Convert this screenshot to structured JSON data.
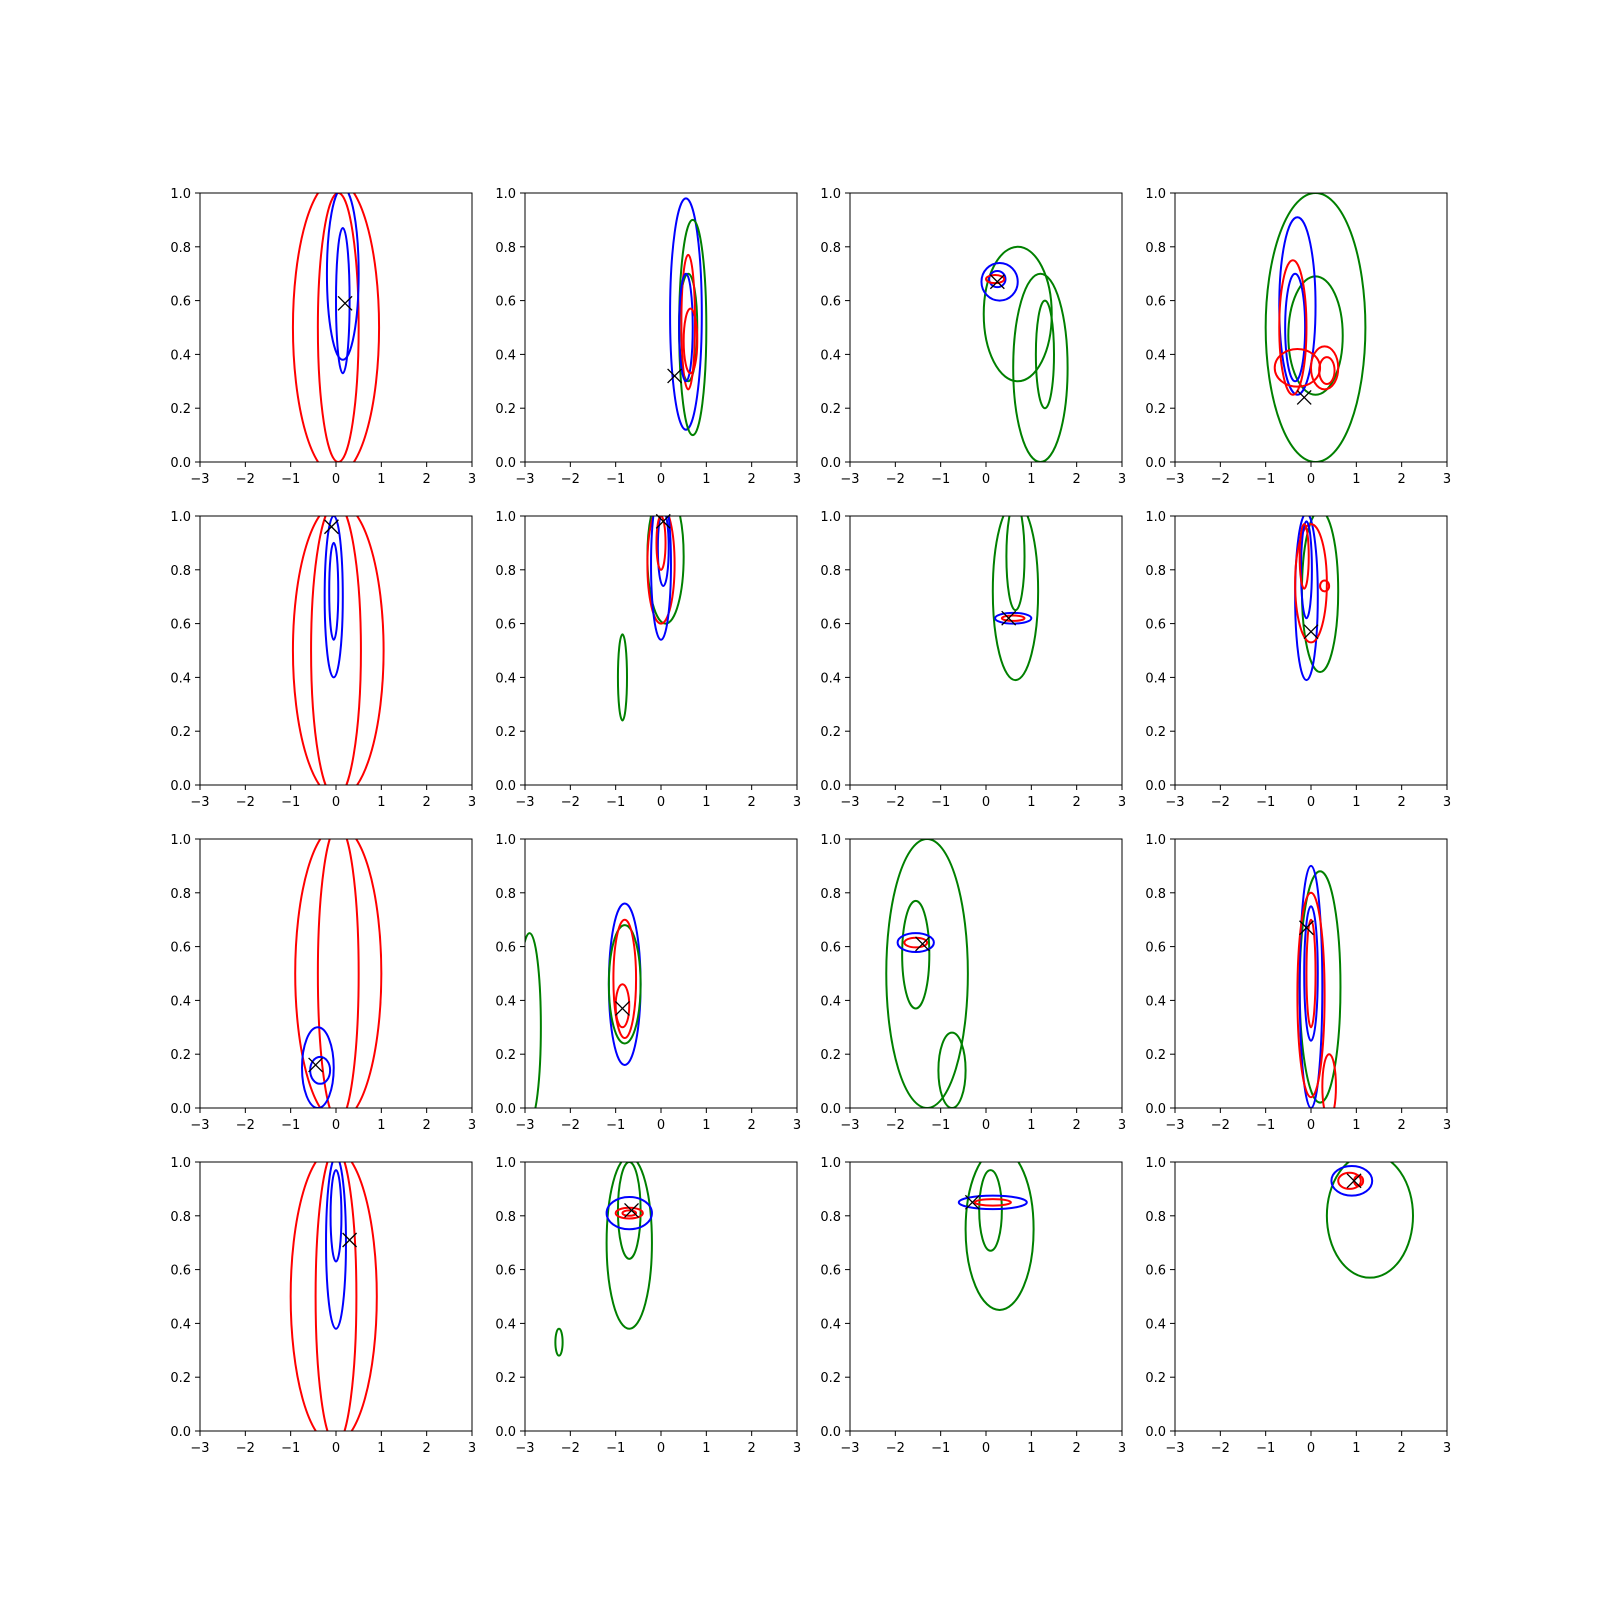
{
  "figure": {
    "rows": 4,
    "cols": 4,
    "x_ticks": [
      "−3",
      "−2",
      "−1",
      "0",
      "1",
      "2",
      "3"
    ],
    "y_ticks": [
      "0.0",
      "0.2",
      "0.4",
      "0.6",
      "0.8",
      "1.0"
    ]
  },
  "colors": {
    "blue": "#0000ff",
    "red": "#ff0000",
    "green": "#008000",
    "marker": "#000000"
  },
  "chart_data": [
    {
      "type": "contour",
      "row": 0,
      "col": 0,
      "xlim": [
        -3,
        3
      ],
      "ylim": [
        0,
        1
      ],
      "marker": [
        0.2,
        0.59
      ],
      "contours": [
        {
          "color": "red",
          "cx": 0.0,
          "cy": 0.5,
          "rx": 0.95,
          "ry": 0.55
        },
        {
          "color": "red",
          "cx": 0.05,
          "cy": 0.5,
          "rx": 0.45,
          "ry": 0.5
        },
        {
          "color": "blue",
          "cx": 0.15,
          "cy": 0.7,
          "rx": 0.35,
          "ry": 0.32
        },
        {
          "color": "blue",
          "cx": 0.15,
          "cy": 0.6,
          "rx": 0.15,
          "ry": 0.27
        }
      ]
    },
    {
      "type": "contour",
      "row": 0,
      "col": 1,
      "xlim": [
        -3,
        3
      ],
      "ylim": [
        0,
        1
      ],
      "marker": [
        0.3,
        0.32
      ],
      "contours": [
        {
          "color": "blue",
          "cx": 0.55,
          "cy": 0.55,
          "rx": 0.35,
          "ry": 0.43
        },
        {
          "color": "green",
          "cx": 0.7,
          "cy": 0.5,
          "rx": 0.3,
          "ry": 0.4
        },
        {
          "color": "green",
          "cx": 0.6,
          "cy": 0.5,
          "rx": 0.2,
          "ry": 0.2
        },
        {
          "color": "red",
          "cx": 0.6,
          "cy": 0.52,
          "rx": 0.15,
          "ry": 0.25
        },
        {
          "color": "blue",
          "cx": 0.55,
          "cy": 0.5,
          "rx": 0.15,
          "ry": 0.2
        },
        {
          "color": "red",
          "cx": 0.65,
          "cy": 0.45,
          "rx": 0.15,
          "ry": 0.12
        }
      ]
    },
    {
      "type": "contour",
      "row": 0,
      "col": 2,
      "xlim": [
        -3,
        3
      ],
      "ylim": [
        0,
        1
      ],
      "marker": [
        0.25,
        0.67
      ],
      "contours": [
        {
          "color": "green",
          "cx": 0.7,
          "cy": 0.55,
          "rx": 0.75,
          "ry": 0.25
        },
        {
          "color": "green",
          "cx": 1.2,
          "cy": 0.35,
          "rx": 0.6,
          "ry": 0.35
        },
        {
          "color": "green",
          "cx": 1.3,
          "cy": 0.4,
          "rx": 0.2,
          "ry": 0.2
        },
        {
          "color": "blue",
          "cx": 0.3,
          "cy": 0.67,
          "rx": 0.4,
          "ry": 0.07
        },
        {
          "color": "blue",
          "cx": 0.25,
          "cy": 0.68,
          "rx": 0.18,
          "ry": 0.03
        },
        {
          "color": "red",
          "cx": 0.2,
          "cy": 0.68,
          "rx": 0.2,
          "ry": 0.015
        }
      ]
    },
    {
      "type": "contour",
      "row": 0,
      "col": 3,
      "xlim": [
        -3,
        3
      ],
      "ylim": [
        0,
        1
      ],
      "marker": [
        -0.15,
        0.24
      ],
      "contours": [
        {
          "color": "green",
          "cx": 0.1,
          "cy": 0.5,
          "rx": 1.1,
          "ry": 0.5
        },
        {
          "color": "green",
          "cx": 0.1,
          "cy": 0.47,
          "rx": 0.6,
          "ry": 0.22
        },
        {
          "color": "blue",
          "cx": -0.3,
          "cy": 0.58,
          "rx": 0.4,
          "ry": 0.33
        },
        {
          "color": "blue",
          "cx": -0.35,
          "cy": 0.5,
          "rx": 0.22,
          "ry": 0.2
        },
        {
          "color": "red",
          "cx": -0.4,
          "cy": 0.5,
          "rx": 0.3,
          "ry": 0.25
        },
        {
          "color": "red",
          "cx": -0.3,
          "cy": 0.35,
          "rx": 0.5,
          "ry": 0.07
        },
        {
          "color": "red",
          "cx": 0.3,
          "cy": 0.35,
          "rx": 0.3,
          "ry": 0.08
        },
        {
          "color": "red",
          "cx": 0.35,
          "cy": 0.34,
          "rx": 0.17,
          "ry": 0.05
        }
      ]
    },
    {
      "type": "contour",
      "row": 1,
      "col": 0,
      "xlim": [
        -3,
        3
      ],
      "ylim": [
        0,
        1
      ],
      "marker": [
        -0.1,
        0.96
      ],
      "contours": [
        {
          "color": "red",
          "cx": 0.05,
          "cy": 0.5,
          "rx": 1.0,
          "ry": 0.55
        },
        {
          "color": "red",
          "cx": 0.0,
          "cy": 0.5,
          "rx": 0.55,
          "ry": 0.55
        },
        {
          "color": "blue",
          "cx": -0.05,
          "cy": 0.7,
          "rx": 0.2,
          "ry": 0.3
        },
        {
          "color": "blue",
          "cx": -0.05,
          "cy": 0.72,
          "rx": 0.1,
          "ry": 0.18
        }
      ]
    },
    {
      "type": "contour",
      "row": 1,
      "col": 1,
      "xlim": [
        -3,
        3
      ],
      "ylim": [
        0,
        1
      ],
      "marker": [
        0.05,
        0.98
      ],
      "contours": [
        {
          "color": "green",
          "cx": 0.1,
          "cy": 0.85,
          "rx": 0.4,
          "ry": 0.25
        },
        {
          "color": "green",
          "cx": -0.85,
          "cy": 0.4,
          "rx": 0.1,
          "ry": 0.16
        },
        {
          "color": "red",
          "cx": 0.0,
          "cy": 0.82,
          "rx": 0.3,
          "ry": 0.22
        },
        {
          "color": "blue",
          "cx": 0.0,
          "cy": 0.82,
          "rx": 0.22,
          "ry": 0.28
        },
        {
          "color": "blue",
          "cx": 0.05,
          "cy": 0.88,
          "rx": 0.12,
          "ry": 0.14
        },
        {
          "color": "red",
          "cx": 0.0,
          "cy": 0.9,
          "rx": 0.1,
          "ry": 0.1
        }
      ]
    },
    {
      "type": "contour",
      "row": 1,
      "col": 2,
      "xlim": [
        -3,
        3
      ],
      "ylim": [
        0,
        1
      ],
      "marker": [
        0.5,
        0.62
      ],
      "contours": [
        {
          "color": "green",
          "cx": 0.65,
          "cy": 0.72,
          "rx": 0.5,
          "ry": 0.33
        },
        {
          "color": "green",
          "cx": 0.65,
          "cy": 0.85,
          "rx": 0.2,
          "ry": 0.2
        },
        {
          "color": "blue",
          "cx": 0.6,
          "cy": 0.62,
          "rx": 0.4,
          "ry": 0.02
        },
        {
          "color": "red",
          "cx": 0.6,
          "cy": 0.62,
          "rx": 0.25,
          "ry": 0.01
        }
      ]
    },
    {
      "type": "contour",
      "row": 1,
      "col": 3,
      "xlim": [
        -3,
        3
      ],
      "ylim": [
        0,
        1
      ],
      "marker": [
        0.0,
        0.57
      ],
      "contours": [
        {
          "color": "green",
          "cx": 0.2,
          "cy": 0.72,
          "rx": 0.4,
          "ry": 0.3
        },
        {
          "color": "blue",
          "cx": -0.1,
          "cy": 0.7,
          "rx": 0.25,
          "ry": 0.31
        },
        {
          "color": "red",
          "cx": 0.0,
          "cy": 0.75,
          "rx": 0.35,
          "ry": 0.22
        },
        {
          "color": "blue",
          "cx": -0.1,
          "cy": 0.8,
          "rx": 0.12,
          "ry": 0.18
        },
        {
          "color": "red",
          "cx": -0.15,
          "cy": 0.85,
          "rx": 0.1,
          "ry": 0.12
        },
        {
          "color": "red",
          "cx": 0.3,
          "cy": 0.74,
          "rx": 0.1,
          "ry": 0.02
        }
      ]
    },
    {
      "type": "contour",
      "row": 2,
      "col": 0,
      "xlim": [
        -3,
        3
      ],
      "ylim": [
        0,
        1
      ],
      "marker": [
        -0.45,
        0.16
      ],
      "contours": [
        {
          "color": "red",
          "cx": 0.05,
          "cy": 0.5,
          "rx": 0.95,
          "ry": 0.55
        },
        {
          "color": "red",
          "cx": 0.05,
          "cy": 0.5,
          "rx": 0.45,
          "ry": 0.55
        },
        {
          "color": "blue",
          "cx": -0.4,
          "cy": 0.15,
          "rx": 0.35,
          "ry": 0.15
        },
        {
          "color": "blue",
          "cx": -0.35,
          "cy": 0.14,
          "rx": 0.22,
          "ry": 0.05
        }
      ]
    },
    {
      "type": "contour",
      "row": 2,
      "col": 1,
      "xlim": [
        -3,
        3
      ],
      "ylim": [
        0,
        1
      ],
      "marker": [
        -0.85,
        0.37
      ],
      "contours": [
        {
          "color": "green",
          "cx": -2.9,
          "cy": 0.3,
          "rx": 0.25,
          "ry": 0.35
        },
        {
          "color": "blue",
          "cx": -0.8,
          "cy": 0.46,
          "rx": 0.35,
          "ry": 0.3
        },
        {
          "color": "green",
          "cx": -0.8,
          "cy": 0.46,
          "rx": 0.35,
          "ry": 0.22
        },
        {
          "color": "red",
          "cx": -0.8,
          "cy": 0.48,
          "rx": 0.25,
          "ry": 0.22
        },
        {
          "color": "red",
          "cx": -0.85,
          "cy": 0.38,
          "rx": 0.15,
          "ry": 0.08
        }
      ]
    },
    {
      "type": "contour",
      "row": 2,
      "col": 2,
      "xlim": [
        -3,
        3
      ],
      "ylim": [
        0,
        1
      ],
      "marker": [
        -1.4,
        0.61
      ],
      "contours": [
        {
          "color": "green",
          "cx": -1.3,
          "cy": 0.5,
          "rx": 0.9,
          "ry": 0.5
        },
        {
          "color": "green",
          "cx": -1.55,
          "cy": 0.57,
          "rx": 0.3,
          "ry": 0.2
        },
        {
          "color": "green",
          "cx": -0.75,
          "cy": 0.14,
          "rx": 0.3,
          "ry": 0.14
        },
        {
          "color": "blue",
          "cx": -1.55,
          "cy": 0.615,
          "rx": 0.4,
          "ry": 0.035
        },
        {
          "color": "red",
          "cx": -1.55,
          "cy": 0.615,
          "rx": 0.25,
          "ry": 0.018
        }
      ]
    },
    {
      "type": "contour",
      "row": 2,
      "col": 3,
      "xlim": [
        -3,
        3
      ],
      "ylim": [
        0,
        1
      ],
      "marker": [
        -0.1,
        0.67
      ],
      "contours": [
        {
          "color": "green",
          "cx": 0.2,
          "cy": 0.45,
          "rx": 0.45,
          "ry": 0.43
        },
        {
          "color": "blue",
          "cx": 0.0,
          "cy": 0.45,
          "rx": 0.25,
          "ry": 0.45
        },
        {
          "color": "red",
          "cx": 0.0,
          "cy": 0.42,
          "rx": 0.3,
          "ry": 0.38
        },
        {
          "color": "blue",
          "cx": 0.0,
          "cy": 0.5,
          "rx": 0.15,
          "ry": 0.25
        },
        {
          "color": "red",
          "cx": 0.0,
          "cy": 0.5,
          "rx": 0.1,
          "ry": 0.2
        },
        {
          "color": "red",
          "cx": 0.4,
          "cy": 0.08,
          "rx": 0.15,
          "ry": 0.12
        }
      ]
    },
    {
      "type": "contour",
      "row": 3,
      "col": 0,
      "xlim": [
        -3,
        3
      ],
      "ylim": [
        0,
        1
      ],
      "marker": [
        0.3,
        0.71
      ],
      "contours": [
        {
          "color": "red",
          "cx": -0.05,
          "cy": 0.5,
          "rx": 0.95,
          "ry": 0.55
        },
        {
          "color": "red",
          "cx": 0.0,
          "cy": 0.5,
          "rx": 0.45,
          "ry": 0.55
        },
        {
          "color": "blue",
          "cx": 0.0,
          "cy": 0.7,
          "rx": 0.22,
          "ry": 0.32
        },
        {
          "color": "blue",
          "cx": 0.0,
          "cy": 0.8,
          "rx": 0.12,
          "ry": 0.17
        }
      ]
    },
    {
      "type": "contour",
      "row": 3,
      "col": 1,
      "xlim": [
        -3,
        3
      ],
      "ylim": [
        0,
        1
      ],
      "marker": [
        -0.65,
        0.82
      ],
      "contours": [
        {
          "color": "green",
          "cx": -0.7,
          "cy": 0.7,
          "rx": 0.5,
          "ry": 0.32
        },
        {
          "color": "green",
          "cx": -0.7,
          "cy": 0.82,
          "rx": 0.25,
          "ry": 0.18
        },
        {
          "color": "green",
          "cx": -2.25,
          "cy": 0.33,
          "rx": 0.08,
          "ry": 0.05
        },
        {
          "color": "blue",
          "cx": -0.7,
          "cy": 0.81,
          "rx": 0.5,
          "ry": 0.06
        },
        {
          "color": "red",
          "cx": -0.7,
          "cy": 0.81,
          "rx": 0.3,
          "ry": 0.02
        },
        {
          "color": "red",
          "cx": -0.7,
          "cy": 0.81,
          "rx": 0.15,
          "ry": 0.01
        }
      ]
    },
    {
      "type": "contour",
      "row": 3,
      "col": 2,
      "xlim": [
        -3,
        3
      ],
      "ylim": [
        0,
        1
      ],
      "marker": [
        -0.3,
        0.85
      ],
      "contours": [
        {
          "color": "green",
          "cx": 0.3,
          "cy": 0.75,
          "rx": 0.75,
          "ry": 0.3
        },
        {
          "color": "green",
          "cx": 0.1,
          "cy": 0.82,
          "rx": 0.25,
          "ry": 0.15
        },
        {
          "color": "blue",
          "cx": 0.15,
          "cy": 0.85,
          "rx": 0.75,
          "ry": 0.025
        },
        {
          "color": "red",
          "cx": 0.15,
          "cy": 0.85,
          "rx": 0.4,
          "ry": 0.012
        }
      ]
    },
    {
      "type": "contour",
      "row": 3,
      "col": 3,
      "xlim": [
        -3,
        3
      ],
      "ylim": [
        0,
        1
      ],
      "marker": [
        0.95,
        0.93
      ],
      "contours": [
        {
          "color": "green",
          "cx": 1.3,
          "cy": 0.8,
          "rx": 0.95,
          "ry": 0.23
        },
        {
          "color": "blue",
          "cx": 0.9,
          "cy": 0.93,
          "rx": 0.45,
          "ry": 0.055
        },
        {
          "color": "red",
          "cx": 0.85,
          "cy": 0.93,
          "rx": 0.25,
          "ry": 0.03
        },
        {
          "color": "red",
          "cx": 1.05,
          "cy": 0.93,
          "rx": 0.1,
          "ry": 0.02
        }
      ]
    }
  ]
}
